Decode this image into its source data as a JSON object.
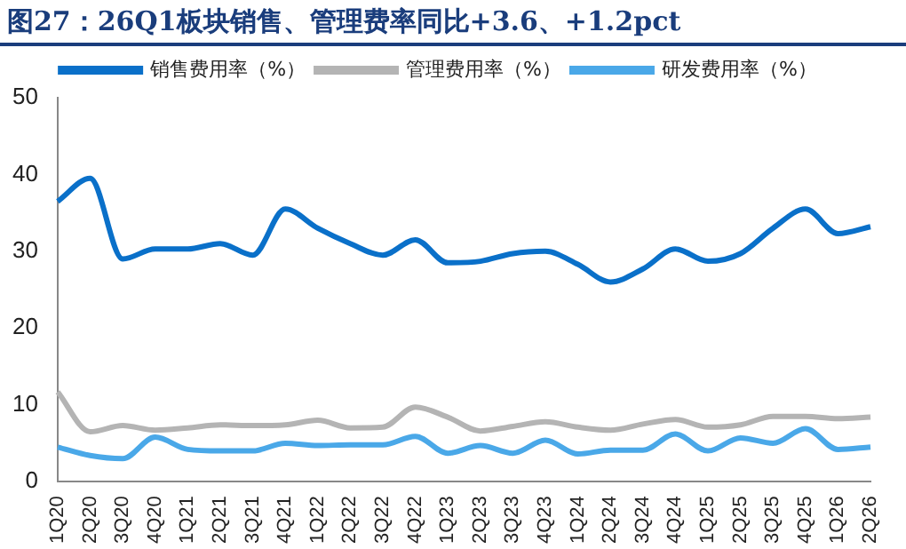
{
  "chart_data": {
    "type": "line",
    "title": "图27：26Q1板块销售、管理费率同比+3.6、+1.2pct",
    "categories": [
      "1Q20",
      "2Q20",
      "3Q20",
      "4Q20",
      "1Q21",
      "2Q21",
      "3Q21",
      "4Q21",
      "1Q22",
      "2Q22",
      "3Q22",
      "4Q22",
      "1Q23",
      "2Q23",
      "3Q23",
      "4Q23",
      "1Q24",
      "2Q24",
      "3Q24",
      "4Q24",
      "1Q25",
      "2Q25",
      "3Q25",
      "4Q25",
      "1Q26",
      "2Q26"
    ],
    "series": [
      {
        "name": "销售费用率（%）",
        "color": "#0a70c9",
        "values": [
          36.5,
          39.5,
          29,
          30.3,
          30.3,
          31,
          29.5,
          35.5,
          33,
          31,
          29.5,
          31.5,
          28.5,
          28.7,
          29.7,
          30,
          28.3,
          26,
          27.7,
          30.3,
          28.7,
          29.7,
          33,
          35.5,
          32.3,
          33.2
        ]
      },
      {
        "name": "管理费用率（%）",
        "color": "#b4b4b4",
        "values": [
          11.7,
          6.5,
          7.3,
          6.7,
          7,
          7.4,
          7.3,
          7.4,
          8,
          7,
          7.1,
          9.7,
          8.4,
          6.6,
          7.2,
          7.8,
          7.1,
          6.7,
          7.5,
          8.1,
          7.1,
          7.4,
          8.5,
          8.5,
          8.2,
          8.4
        ]
      },
      {
        "name": "研发费用率（%）",
        "color": "#4aa8e8",
        "values": [
          4.5,
          3.4,
          3,
          5.8,
          4.2,
          4,
          4,
          5,
          4.7,
          4.8,
          4.8,
          5.9,
          3.7,
          4.7,
          3.7,
          5.4,
          3.6,
          4.1,
          4.1,
          6.2,
          4,
          5.7,
          5,
          6.9,
          4.2,
          4.5
        ]
      }
    ],
    "ylim": [
      0,
      50
    ],
    "yticks": [
      0,
      10,
      20,
      30,
      40,
      50
    ],
    "grid": false,
    "legend": "top",
    "marker": "none",
    "line_style": "solid"
  }
}
